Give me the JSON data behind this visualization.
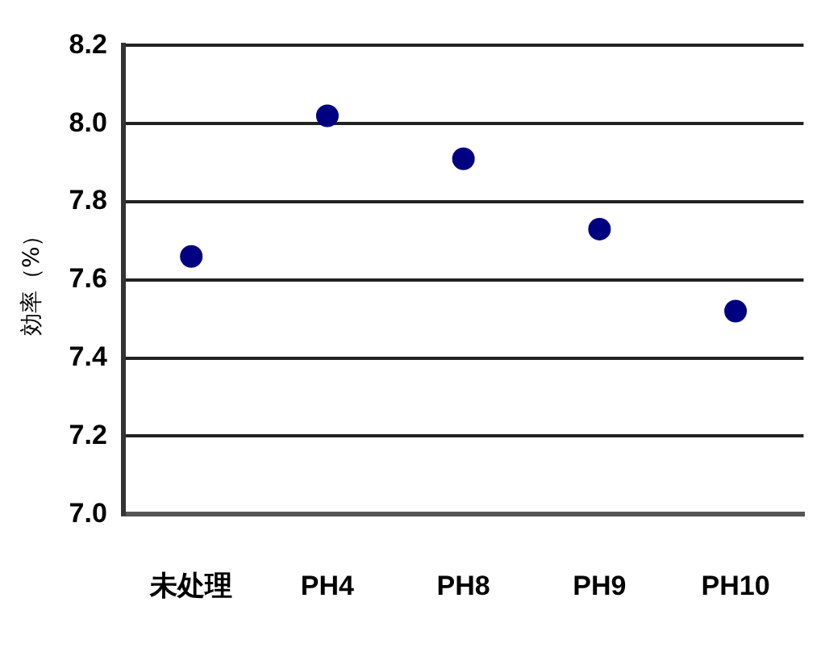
{
  "chart_data": {
    "type": "scatter",
    "ylabel": "効率（%）",
    "categories": [
      "未处理",
      "PH4",
      "PH8",
      "PH9",
      "PH10"
    ],
    "series": [
      {
        "color": "#000080",
        "values": [
          7.66,
          8.02,
          7.91,
          7.73,
          7.52
        ]
      }
    ],
    "ylim": [
      7.0,
      8.2
    ],
    "yticks": [
      {
        "value": 7,
        "label": "7.0"
      },
      7.2,
      7.4,
      7.6,
      7.8,
      {
        "value": 8,
        "label": "8.0"
      },
      8.2
    ],
    "grid": "y",
    "marker": "circle",
    "legend": false
  }
}
